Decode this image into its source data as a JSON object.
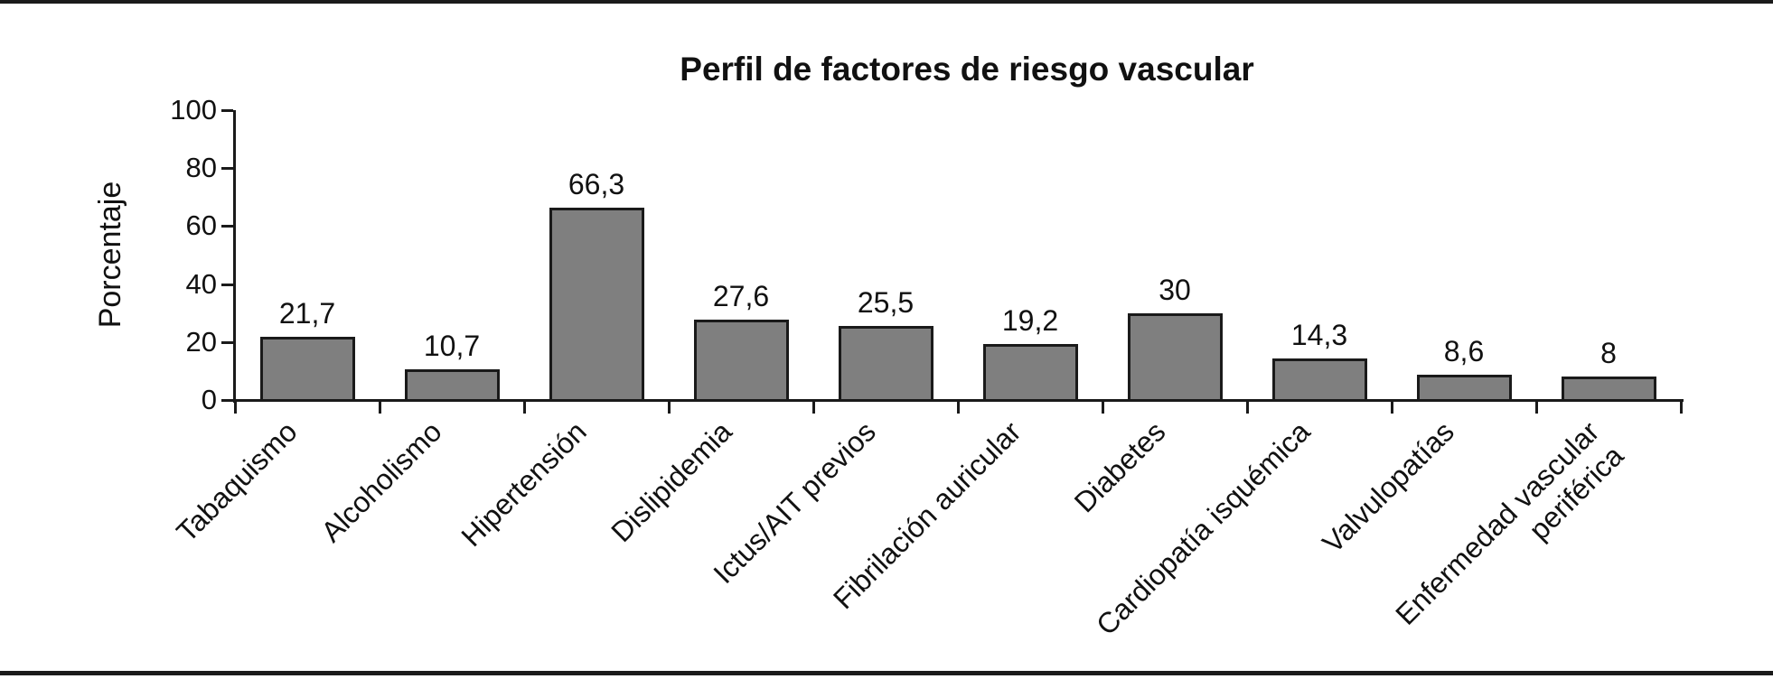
{
  "figure": {
    "background": "#ffffff",
    "border_color": "#1a1a1a"
  },
  "chart_data": {
    "type": "bar",
    "title": "Perfil de factores de riesgo vascular",
    "ylabel": "Porcentaje",
    "xlabel": "",
    "ylim": [
      0,
      100
    ],
    "yticks": [
      0,
      20,
      40,
      60,
      80,
      100
    ],
    "grid": false,
    "legend": null,
    "bar_color": "#7f7f7f",
    "bar_border_color": "#1a1a1a",
    "categories": [
      "Tabaquismo",
      "Alcoholismo",
      "Hipertensión",
      "Dislipidemia",
      "Ictus/AIT previos",
      "Fibrilación auricular",
      "Diabetes",
      "Cardiopatía isquémica",
      "Valvulopatías",
      "Enfermedad vascular\nperiférica"
    ],
    "values": [
      21.7,
      10.7,
      66.3,
      27.6,
      25.5,
      19.2,
      30,
      14.3,
      8.6,
      8
    ],
    "value_labels": [
      "21,7",
      "10,7",
      "66,3",
      "27,6",
      "25,5",
      "19,2",
      "30",
      "14,3",
      "8,6",
      "8"
    ]
  }
}
